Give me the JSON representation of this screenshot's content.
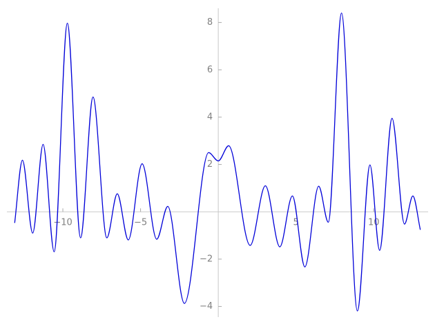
{
  "chart_data": {
    "type": "line",
    "x": [
      -13.1,
      -12.6,
      -11.94,
      -11.27,
      -10.56,
      -9.71,
      -8.86,
      -8.06,
      -7.17,
      -6.5,
      -5.79,
      -4.9,
      -3.96,
      -3.25,
      -2.18,
      -0.62,
      0,
      0.67,
      2.05,
      3.03,
      3.96,
      4.77,
      5.57,
      6.46,
      7.08,
      7.93,
      8.95,
      9.76,
      10.38,
      11.18,
      11.98,
      12.52,
      13.0
    ],
    "series": [
      {
        "color": "#0000d8",
        "values": [
          -0.47,
          2.18,
          -0.9,
          2.85,
          -1.69,
          7.97,
          -1.1,
          4.85,
          -1.1,
          0.76,
          -1.19,
          2.03,
          -1.16,
          0.23,
          -3.87,
          2.5,
          2.15,
          2.79,
          -1.42,
          1.1,
          -1.48,
          0.67,
          -2.33,
          1.08,
          -0.44,
          8.4,
          -4.19,
          1.98,
          -1.63,
          3.95,
          -0.52,
          0.67,
          -0.76
        ]
      }
    ],
    "xlim": [
      -13.6,
      13.5
    ],
    "ylim": [
      -4.45,
      8.6
    ],
    "xticks": [
      {
        "value": -10,
        "label": "−10"
      },
      {
        "value": -5,
        "label": "−5"
      },
      5,
      10
    ],
    "yticks": [
      {
        "value": -4,
        "label": "−4"
      },
      {
        "value": -2,
        "label": "−2"
      },
      2,
      4,
      6,
      8
    ]
  }
}
